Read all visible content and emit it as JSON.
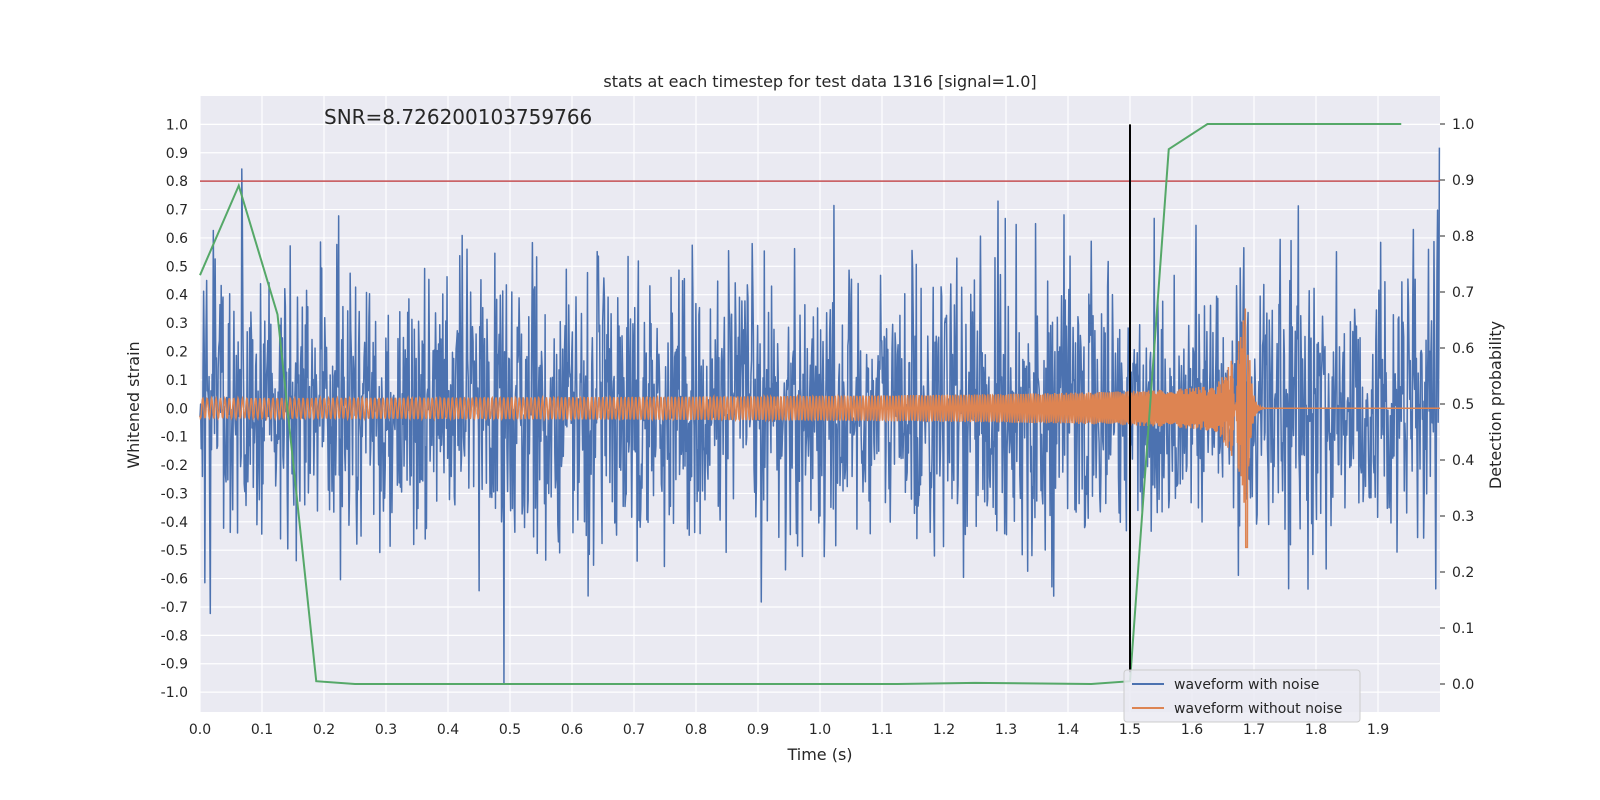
{
  "chart_data": {
    "type": "line",
    "title": "stats at each timestep for test data 1316 [signal=1.0]",
    "xlabel": "Time (s)",
    "ylabel": "Whitened strain",
    "y2label": "Detection probability",
    "annotation": "SNR=8.726200103759766",
    "xlim": [
      0.0,
      2.0
    ],
    "ylim": [
      -1.07,
      1.1
    ],
    "y2lim": [
      -0.05,
      1.05
    ],
    "x_ticks": [
      0.0,
      0.1,
      0.2,
      0.3,
      0.4,
      0.5,
      0.6,
      0.7,
      0.8,
      0.9,
      1.0,
      1.1,
      1.2,
      1.3,
      1.4,
      1.5,
      1.6,
      1.7,
      1.8,
      1.9
    ],
    "x_tick_labels": [
      "0.0",
      "0.1",
      "0.2",
      "0.3",
      "0.4",
      "0.5",
      "0.6",
      "0.7",
      "0.8",
      "0.9",
      "1.0",
      "1.1",
      "1.2",
      "1.3",
      "1.4",
      "1.5",
      "1.6",
      "1.7",
      "1.8",
      "1.9"
    ],
    "y_ticks": [
      1.0,
      0.9,
      0.8,
      0.7,
      0.6,
      0.5,
      0.4,
      0.3,
      0.2,
      0.1,
      0.0,
      -0.1,
      -0.2,
      -0.3,
      -0.4,
      -0.5,
      -0.6,
      -0.7,
      -0.8,
      -0.9,
      -1.0
    ],
    "y_tick_labels": [
      "1.0",
      "0.9",
      "0.8",
      "0.7",
      "0.6",
      "0.5",
      "0.4",
      "0.3",
      "0.2",
      "0.1",
      "0.0",
      "-0.1",
      "-0.2",
      "-0.3",
      "-0.4",
      "-0.5",
      "-0.6",
      "-0.7",
      "-0.8",
      "-0.9",
      "-1.0"
    ],
    "y2_ticks": [
      1.0,
      0.9,
      0.8,
      0.7,
      0.6,
      0.5,
      0.4,
      0.3,
      0.2,
      0.1,
      0.0
    ],
    "y2_tick_labels": [
      "1.0",
      "0.9",
      "0.8",
      "0.7",
      "0.6",
      "0.5",
      "0.4",
      "0.3",
      "0.2",
      "0.1",
      "0.0"
    ],
    "grid": true,
    "threshold_line": {
      "y": 0.8,
      "color": "#c44e52"
    },
    "vertical_marker": {
      "x": 1.5,
      "y_range": [
        -0.93,
        1.0
      ],
      "color": "#000000"
    },
    "legend": {
      "placement": "lower-right",
      "entries": [
        "waveform with noise",
        "waveform without noise"
      ]
    },
    "series": [
      {
        "name": "waveform with noise",
        "color": "#4c72b0",
        "kind": "noise",
        "x_range": [
          0.0,
          2.0
        ],
        "amplitude_range": [
          -0.97,
          1.0
        ]
      },
      {
        "name": "waveform without noise",
        "color": "#dd8452",
        "kind": "chirp",
        "x_range": [
          0.0,
          2.0
        ],
        "merger_time": 1.69,
        "peak_positive": 0.33,
        "peak_negative": -0.49
      },
      {
        "name": "Detection probability",
        "color": "#55a868",
        "axis": "right",
        "x": [
          0.0,
          0.0625,
          0.125,
          0.1875,
          0.25,
          0.5,
          0.75,
          1.0,
          1.125,
          1.25,
          1.4375,
          1.5,
          1.5625,
          1.625,
          1.6875,
          1.75,
          1.8125,
          1.875,
          1.9375
        ],
        "y": [
          0.73,
          0.89,
          0.66,
          0.005,
          0.0,
          0.0,
          0.0,
          0.0,
          0.0,
          0.002,
          0.0,
          0.005,
          0.955,
          1.0,
          1.0,
          1.0,
          1.0,
          1.0,
          1.0
        ]
      }
    ]
  }
}
